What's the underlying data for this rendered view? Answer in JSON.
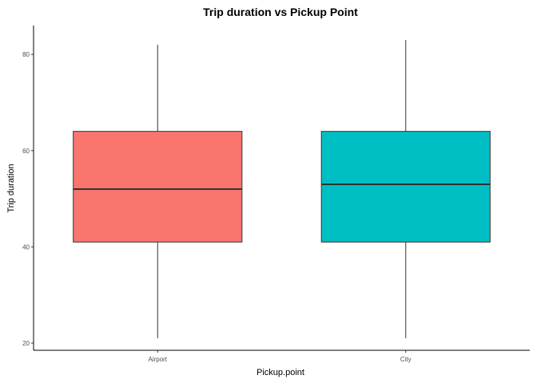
{
  "chart_data": {
    "type": "boxplot",
    "title": "Trip duration vs Pickup Point",
    "xlabel": "Pickup.point",
    "ylabel": "Trip duration",
    "ylim": [
      18.5,
      86
    ],
    "yticks": [
      20,
      40,
      60,
      80
    ],
    "grid": false,
    "legend": "none",
    "categories": [
      "Airport",
      "City"
    ],
    "boxes": [
      {
        "category": "Airport",
        "min": 21,
        "q1": 41,
        "median": 52,
        "q3": 64,
        "max": 82,
        "color": "#F8766D"
      },
      {
        "category": "City",
        "min": 21,
        "q1": 41,
        "median": 53,
        "q3": 64,
        "max": 83,
        "color": "#00BFC4"
      }
    ]
  }
}
